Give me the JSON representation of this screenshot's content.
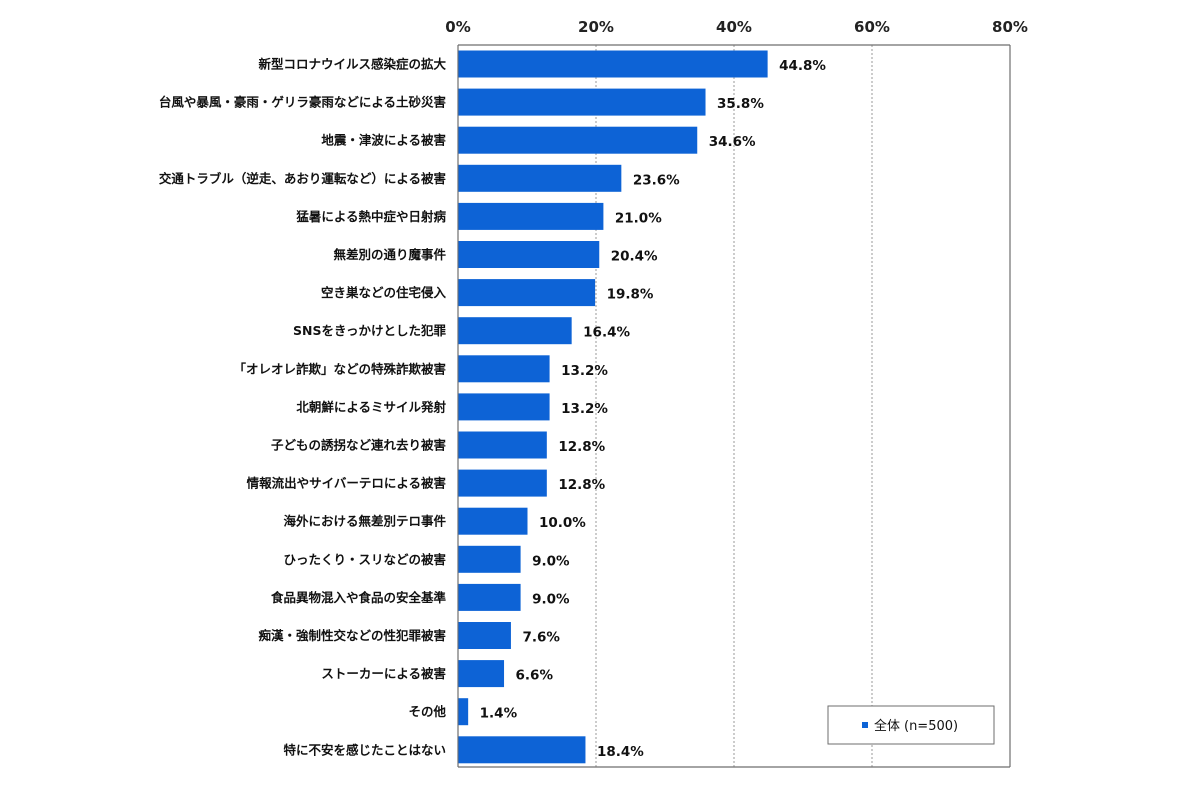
{
  "chart_data": {
    "type": "bar",
    "orientation": "horizontal",
    "categories": [
      "新型コロナウイルス感染症の拡大",
      "台風や暴風・豪雨・ゲリラ豪雨などによる土砂災害",
      "地震・津波による被害",
      "交通トラブル（逆走、あおり運転など）による被害",
      "猛暑による熱中症や日射病",
      "無差別の通り魔事件",
      "空き巣などの住宅侵入",
      "SNSをきっかけとした犯罪",
      "「オレオレ詐欺」などの特殊詐欺被害",
      "北朝鮮によるミサイル発射",
      "子どもの誘拐など連れ去り被害",
      "情報流出やサイバーテロによる被害",
      "海外における無差別テロ事件",
      "ひったくり・スリなどの被害",
      "食品異物混入や食品の安全基準",
      "痴漢・強制性交などの性犯罪被害",
      "ストーカーによる被害",
      "その他",
      "特に不安を感じたことはない"
    ],
    "series": [
      {
        "name": "全体",
        "values": [
          44.8,
          35.8,
          34.6,
          23.6,
          21.0,
          20.4,
          19.8,
          16.4,
          13.2,
          13.2,
          12.8,
          12.8,
          10.0,
          9.0,
          9.0,
          7.6,
          6.6,
          1.4,
          18.4
        ],
        "labels": [
          "44.8%",
          "35.8%",
          "34.6%",
          "23.6%",
          "21.0%",
          "20.4%",
          "19.8%",
          "16.4%",
          "13.2%",
          "13.2%",
          "12.8%",
          "12.8%",
          "10.0%",
          "9.0%",
          "9.0%",
          "7.6%",
          "6.6%",
          "1.4%",
          "18.4%"
        ]
      }
    ],
    "xlim": [
      0,
      80
    ],
    "xticks": [
      0,
      20,
      40,
      60,
      80
    ],
    "xtick_labels": [
      "0%",
      "20%",
      "40%",
      "60%",
      "80%"
    ],
    "grid": true,
    "legend": {
      "position": "bottom-right",
      "label": "全体",
      "note": "(n=500)"
    },
    "colors": {
      "bar": "#0d63d6",
      "grid": "#9a9a9a",
      "frame": "#6e6e6e"
    }
  }
}
